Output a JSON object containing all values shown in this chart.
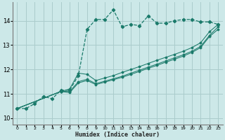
{
  "xlabel": "Humidex (Indice chaleur)",
  "bg_color": "#cce8e8",
  "grid_color": "#aacccc",
  "line_color": "#1a7a6a",
  "xlim": [
    -0.5,
    23.5
  ],
  "ylim": [
    9.75,
    14.75
  ],
  "xticks": [
    0,
    1,
    2,
    3,
    4,
    5,
    6,
    7,
    8,
    9,
    10,
    11,
    12,
    13,
    14,
    15,
    16,
    17,
    18,
    19,
    20,
    21,
    22,
    23
  ],
  "yticks": [
    10,
    11,
    12,
    13,
    14
  ],
  "line1_x": [
    0,
    1,
    2,
    3,
    4,
    5,
    6,
    7,
    8,
    9,
    10,
    11,
    12,
    13,
    14,
    15,
    16,
    17,
    18,
    19,
    20,
    21,
    22,
    23
  ],
  "line1_y": [
    10.4,
    10.4,
    10.6,
    10.9,
    10.8,
    11.15,
    11.15,
    11.75,
    13.65,
    14.05,
    14.05,
    14.45,
    13.75,
    13.85,
    13.8,
    14.2,
    13.9,
    13.9,
    14.0,
    14.05,
    14.05,
    13.95,
    13.95,
    13.85
  ],
  "line2_x": [
    0,
    5,
    6,
    7,
    8,
    9,
    10,
    11,
    12,
    13,
    14,
    15,
    16,
    17,
    18,
    19,
    20,
    21,
    22,
    23
  ],
  "line2_y": [
    10.4,
    11.1,
    11.2,
    11.85,
    11.8,
    11.55,
    11.65,
    11.75,
    11.88,
    12.0,
    12.12,
    12.25,
    12.38,
    12.5,
    12.62,
    12.75,
    12.9,
    13.1,
    13.55,
    13.85
  ],
  "line3_x": [
    0,
    5,
    6,
    7,
    8,
    9,
    10,
    11,
    12,
    13,
    14,
    15,
    16,
    17,
    18,
    19,
    20,
    21,
    22,
    23
  ],
  "line3_y": [
    10.4,
    11.1,
    11.1,
    11.5,
    11.6,
    11.42,
    11.52,
    11.62,
    11.72,
    11.85,
    11.97,
    12.1,
    12.22,
    12.35,
    12.48,
    12.6,
    12.75,
    12.95,
    13.4,
    13.75
  ],
  "line4_x": [
    0,
    5,
    6,
    7,
    8,
    9,
    10,
    11,
    12,
    13,
    14,
    15,
    16,
    17,
    18,
    19,
    20,
    21,
    22,
    23
  ],
  "line4_y": [
    10.4,
    11.1,
    11.05,
    11.45,
    11.55,
    11.38,
    11.48,
    11.58,
    11.68,
    11.8,
    11.92,
    12.05,
    12.17,
    12.3,
    12.42,
    12.55,
    12.7,
    12.9,
    13.35,
    13.65
  ]
}
